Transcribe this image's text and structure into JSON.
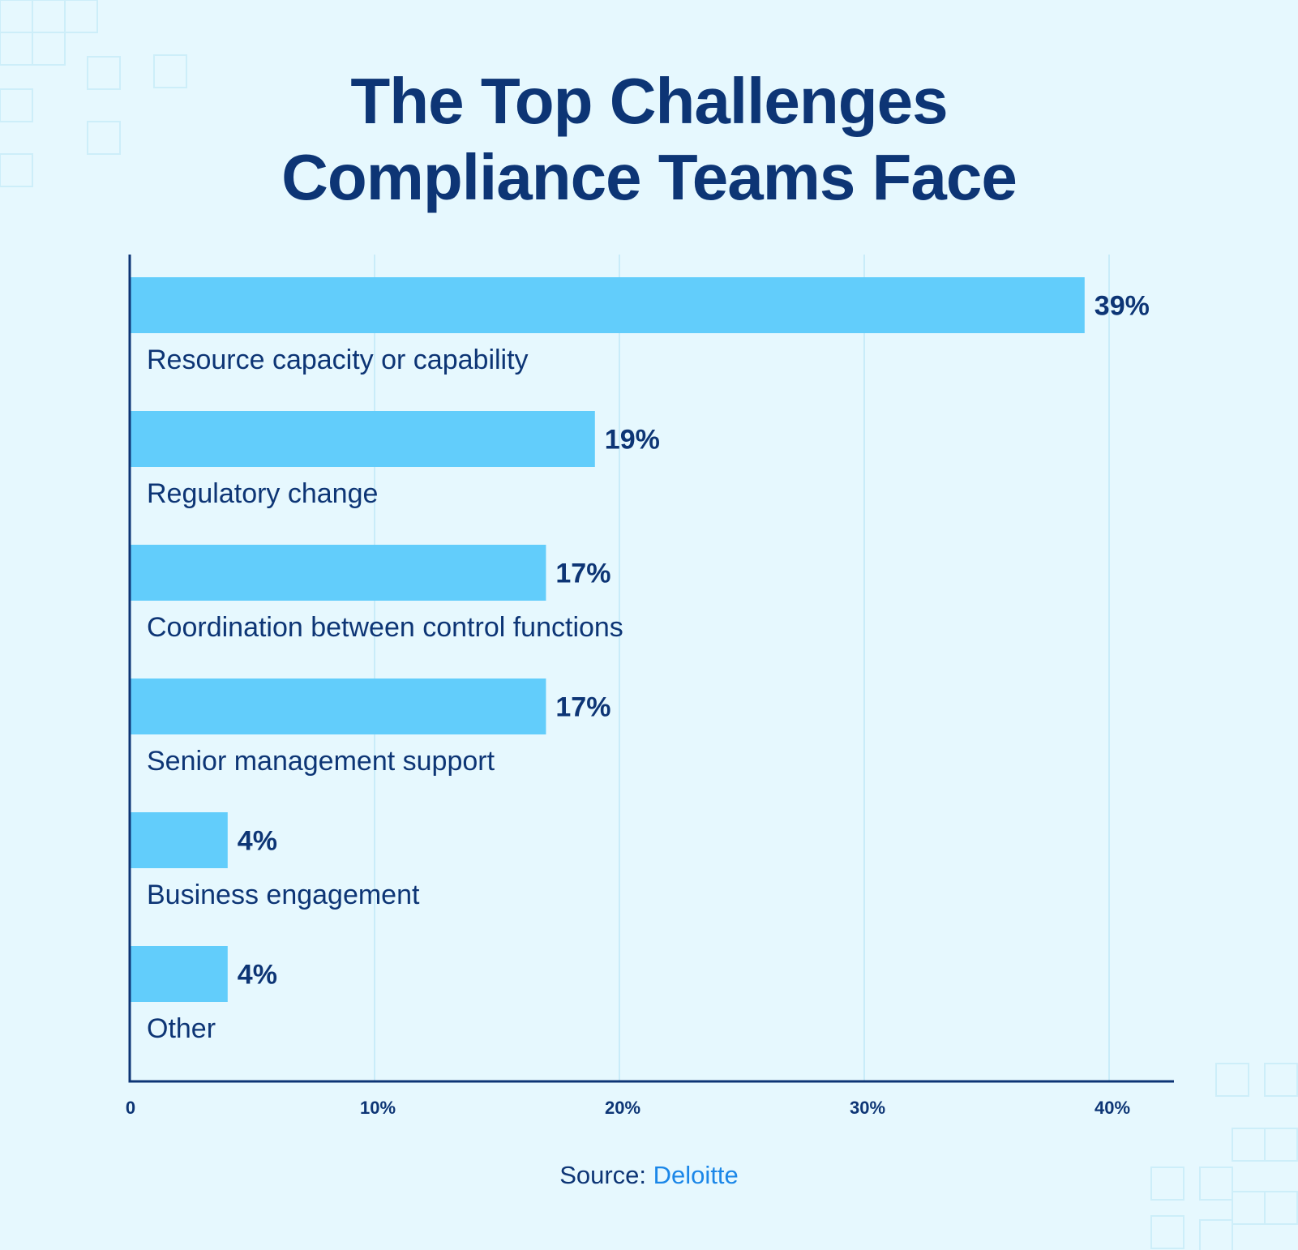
{
  "title": {
    "line1": "The Top Challenges",
    "line2": "Compliance Teams Face"
  },
  "source": {
    "label": "Source:",
    "name": "Deloitte"
  },
  "colors": {
    "background": "#e6f8fe",
    "bar": "#62cdfb",
    "text_dark": "#0d3575",
    "link": "#1b87e8",
    "grid": "#c9ecf9"
  },
  "chart_data": {
    "type": "bar",
    "orientation": "horizontal",
    "categories": [
      "Resource capacity or capability",
      "Regulatory change",
      "Coordination between control functions",
      "Senior management support",
      "Business engagement",
      "Other"
    ],
    "values": [
      39,
      19,
      17,
      17,
      4,
      4
    ],
    "value_labels": [
      "39%",
      "19%",
      "17%",
      "17%",
      "4%",
      "4%"
    ],
    "xlim": [
      0,
      41
    ],
    "x_ticks": [
      0,
      10,
      20,
      30,
      40
    ],
    "x_tick_labels": [
      "0",
      "10%",
      "20%",
      "30%",
      "40%"
    ],
    "grid": true
  }
}
